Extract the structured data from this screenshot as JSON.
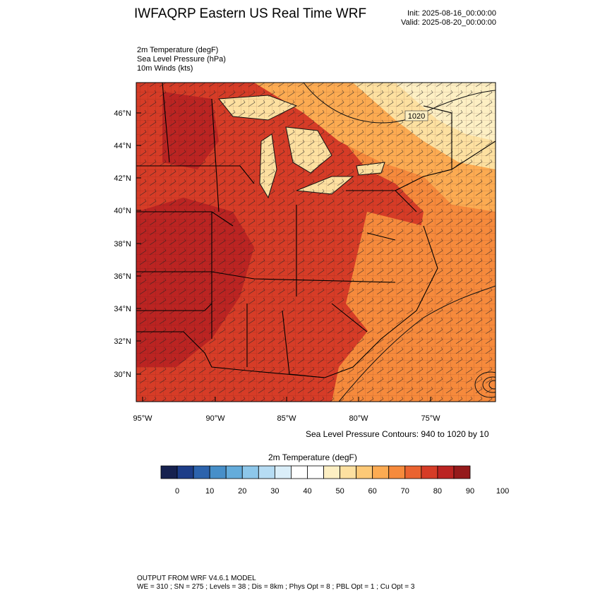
{
  "title": "IWFAQRP Eastern US Real Time WRF",
  "init": "Init: 2025-08-16_00:00:00",
  "valid": "Valid: 2025-08-20_00:00:00",
  "fields": [
    "2m Temperature   (degF)",
    "Sea Level Pressure   (hPa)",
    "10m Winds   (kts)"
  ],
  "map": {
    "lat_labels": [
      "46°N",
      "44°N",
      "42°N",
      "40°N",
      "38°N",
      "36°N",
      "34°N",
      "32°N",
      "30°N"
    ],
    "lon_labels": [
      "95°W",
      "90°W",
      "85°W",
      "80°W",
      "75°W"
    ],
    "pressure_contour_label": "1020"
  },
  "contour_note": "Sea Level Pressure Contours: 940 to 1020 by 10",
  "colorbar": {
    "title": "2m Temperature  (degF)",
    "ticks": [
      "0",
      "10",
      "20",
      "30",
      "40",
      "50",
      "60",
      "70",
      "80",
      "90",
      "100"
    ],
    "colors": [
      "#16214f",
      "#1d3d88",
      "#2c63ad",
      "#478fc9",
      "#64acdb",
      "#8dc7ea",
      "#b6dcf3",
      "#daeef9",
      "#ffffff",
      "#ffffff",
      "#fdefc3",
      "#fde0a0",
      "#fdc977",
      "#fcab52",
      "#f68a3c",
      "#ea6330",
      "#d63c27",
      "#bb2422",
      "#951a1b"
    ]
  },
  "footer": {
    "line1": "OUTPUT FROM WRF V4.6.1 MODEL",
    "line2": "WE = 310 ; SN = 275 ; Levels = 38 ; Dis = 8km ; Phys Opt = 8 ; PBL Opt = 1 ; Cu Opt = 3"
  }
}
